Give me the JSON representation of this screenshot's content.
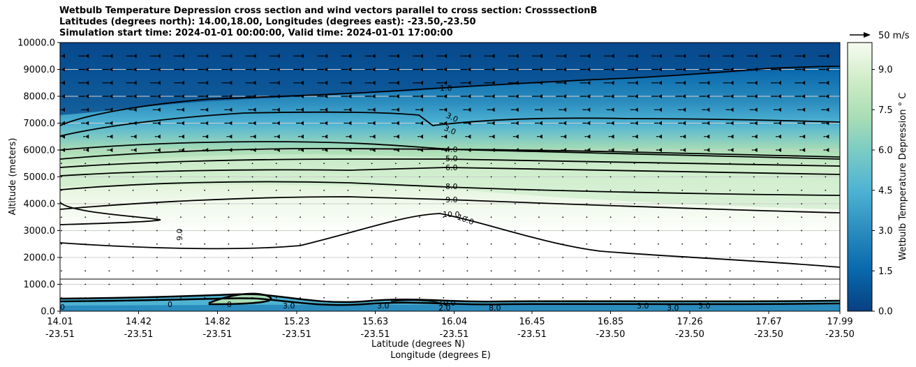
{
  "chart_data": {
    "type": "contour",
    "title_lines": [
      "Wetbulb Temperature Depression cross section and wind vectors parallel to cross section: CrosssectionB",
      "Latitudes (degrees north): 14.00,18.00, Longitudes (degrees east): -23.50,-23.50",
      "Simulation start time: 2024-01-01 00:00:00, Valid time: 2024-01-01 17:00:00"
    ],
    "ylabel": "Altitude (meters)",
    "xlabel_lat": "Latitude (degrees N)",
    "xlabel_lon": "Longitude (degrees E)",
    "ylim": [
      0,
      10000
    ],
    "y_ticks": [
      "0.0",
      "1000.0",
      "2000.0",
      "3000.0",
      "4000.0",
      "5000.0",
      "6000.0",
      "7000.0",
      "8000.0",
      "9000.0",
      "10000.0"
    ],
    "x_ticks": [
      {
        "lat": "14.01",
        "lon": "-23.51"
      },
      {
        "lat": "14.42",
        "lon": "-23.51"
      },
      {
        "lat": "14.82",
        "lon": "-23.51"
      },
      {
        "lat": "15.23",
        "lon": "-23.51"
      },
      {
        "lat": "15.63",
        "lon": "-23.51"
      },
      {
        "lat": "16.04",
        "lon": "-23.51"
      },
      {
        "lat": "16.45",
        "lon": "-23.51"
      },
      {
        "lat": "16.85",
        "lon": "-23.50"
      },
      {
        "lat": "17.26",
        "lon": "-23.50"
      },
      {
        "lat": "17.67",
        "lon": "-23.50"
      },
      {
        "lat": "17.99",
        "lon": "-23.50"
      }
    ],
    "contour_levels": [
      "1.0",
      "3.0",
      "3.0",
      "4.0",
      "5.0",
      "6.0",
      "8.0",
      "9.0",
      "10.0",
      "10.0",
      "9.0"
    ],
    "colorbar": {
      "label": "Wetbulb Temperature Depression $^\\circ$ C",
      "label_display": "Wetbulb Temperature Depression ° C",
      "ticks": [
        "0.0",
        "1.5",
        "3.0",
        "4.5",
        "6.0",
        "7.5",
        "9.0"
      ],
      "vmin": 0,
      "vmax": 10
    },
    "quiver_key": "50 m/s",
    "surface_labels": [
      "0",
      "0",
      "3.0",
      "0",
      "3.0",
      "10.0",
      "2.0",
      "8.0",
      "3.0",
      "3.0",
      "3.0"
    ]
  }
}
